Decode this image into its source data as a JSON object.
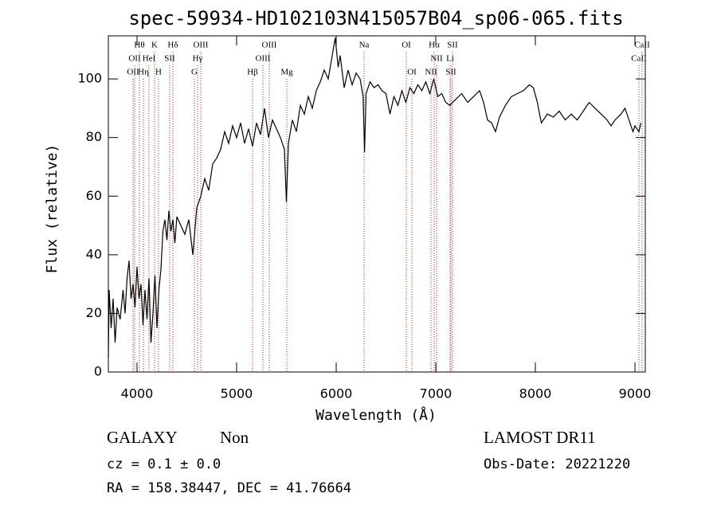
{
  "chart_data": {
    "type": "line",
    "title": "spec-59934-HD102103N415057B04_sp06-065.fits",
    "x_label": "Wavelength (Å)",
    "y_label": "Flux (relative)",
    "xlim": [
      3712,
      9104
    ],
    "ylim": [
      0,
      114.7
    ],
    "xticks": [
      4000,
      5000,
      6000,
      7000,
      8000,
      9000
    ],
    "yticks": [
      0,
      20,
      40,
      60,
      80,
      100
    ],
    "color": "#000000",
    "line_color": "#b22222",
    "x": [
      3712,
      3720,
      3740,
      3760,
      3780,
      3800,
      3830,
      3860,
      3880,
      3900,
      3920,
      3940,
      3960,
      3980,
      4000,
      4020,
      4040,
      4060,
      4080,
      4100,
      4120,
      4140,
      4160,
      4180,
      4200,
      4220,
      4240,
      4260,
      4280,
      4300,
      4320,
      4340,
      4360,
      4380,
      4400,
      4440,
      4480,
      4520,
      4560,
      4600,
      4640,
      4680,
      4720,
      4760,
      4800,
      4840,
      4880,
      4920,
      4960,
      5000,
      5040,
      5080,
      5120,
      5160,
      5200,
      5240,
      5280,
      5320,
      5360,
      5400,
      5440,
      5480,
      5500,
      5520,
      5560,
      5600,
      5640,
      5680,
      5720,
      5760,
      5800,
      5840,
      5880,
      5920,
      5960,
      5990,
      6020,
      6040,
      6080,
      6120,
      6160,
      6200,
      6240,
      6270,
      6285,
      6300,
      6340,
      6380,
      6420,
      6460,
      6500,
      6540,
      6580,
      6620,
      6660,
      6700,
      6740,
      6780,
      6820,
      6860,
      6900,
      6940,
      6980,
      7020,
      7060,
      7100,
      7140,
      7200,
      7260,
      7320,
      7380,
      7440,
      7480,
      7520,
      7560,
      7600,
      7640,
      7700,
      7760,
      7820,
      7880,
      7940,
      7980,
      8020,
      8060,
      8120,
      8180,
      8240,
      8300,
      8360,
      8420,
      8480,
      8540,
      8600,
      8660,
      8720,
      8760,
      8800,
      8860,
      8900,
      8940,
      8980,
      9000,
      9040,
      9060
    ],
    "values": [
      5,
      28,
      15,
      25,
      10,
      22,
      18,
      28,
      20,
      32,
      38,
      25,
      30,
      22,
      36,
      25,
      30,
      16,
      28,
      18,
      32,
      10,
      20,
      33,
      15,
      28,
      35,
      48,
      52,
      45,
      55,
      48,
      52,
      44,
      53,
      50,
      47,
      52,
      40,
      56,
      60,
      66,
      62,
      71,
      73,
      76,
      82,
      78,
      84,
      80,
      85,
      78,
      83,
      77,
      85,
      81,
      90,
      80,
      86,
      83,
      80,
      76,
      58,
      78,
      86,
      82,
      91,
      88,
      94,
      90,
      96,
      99,
      103,
      100,
      108,
      114,
      104,
      108,
      97,
      103,
      98,
      102,
      100,
      94,
      75,
      95,
      99,
      97,
      98,
      96,
      95,
      88,
      94,
      91,
      96,
      92,
      97,
      95,
      98,
      96,
      99,
      95,
      100,
      94,
      95,
      92,
      91,
      93,
      95,
      92,
      94,
      96,
      92,
      86,
      85,
      82,
      87,
      91,
      94,
      95,
      96,
      98,
      97,
      92,
      85,
      88,
      87,
      89,
      86,
      88,
      86,
      89,
      92,
      90,
      88,
      86,
      84,
      86,
      88,
      90,
      86,
      82,
      84,
      82,
      85
    ],
    "spectral_lines": [
      [
        {
          "label": "Hθ",
          "wavelength": 4024
        },
        {
          "label": "K",
          "wavelength": 4176
        },
        {
          "label": "Hδ",
          "wavelength": 4360
        },
        {
          "label": "OIII",
          "wavelength": 4640
        },
        {
          "label": "OIII",
          "wavelength": 5328
        },
        {
          "label": "Na",
          "wavelength": 6280
        },
        {
          "label": "OI",
          "wavelength": 6704
        },
        {
          "label": "Hα",
          "wavelength": 6984
        },
        {
          "label": "SII",
          "wavelength": 7168
        },
        {
          "label": "CaII",
          "wavelength": 9072
        }
      ],
      [
        {
          "label": "OII",
          "wavelength": 3976
        },
        {
          "label": "HeI",
          "wavelength": 4120
        },
        {
          "label": "SII",
          "wavelength": 4328
        },
        {
          "label": "Hγ",
          "wavelength": 4608
        },
        {
          "label": "OIII",
          "wavelength": 5264
        },
        {
          "label": "NII",
          "wavelength": 7008
        },
        {
          "label": "Li",
          "wavelength": 7144
        },
        {
          "label": "CaII",
          "wavelength": 9040
        }
      ],
      [
        {
          "label": "OII",
          "wavelength": 3960
        },
        {
          "label": "Hη",
          "wavelength": 4064
        },
        {
          "label": "H",
          "wavelength": 4216
        },
        {
          "label": "G",
          "wavelength": 4576
        },
        {
          "label": "Hβ",
          "wavelength": 5160
        },
        {
          "label": "Mg",
          "wavelength": 5504
        },
        {
          "label": "OI",
          "wavelength": 6760
        },
        {
          "label": "NII",
          "wavelength": 6952
        },
        {
          "label": "SII",
          "wavelength": 7152
        }
      ]
    ]
  },
  "info": {
    "class": "GALAXY",
    "subclass": "Non",
    "cz": "cz = 0.1 ± 0.0",
    "coords": "RA = 158.38447, DEC =  41.76664",
    "survey": "LAMOST DR11",
    "obs_date": "Obs-Date: 20221220"
  }
}
